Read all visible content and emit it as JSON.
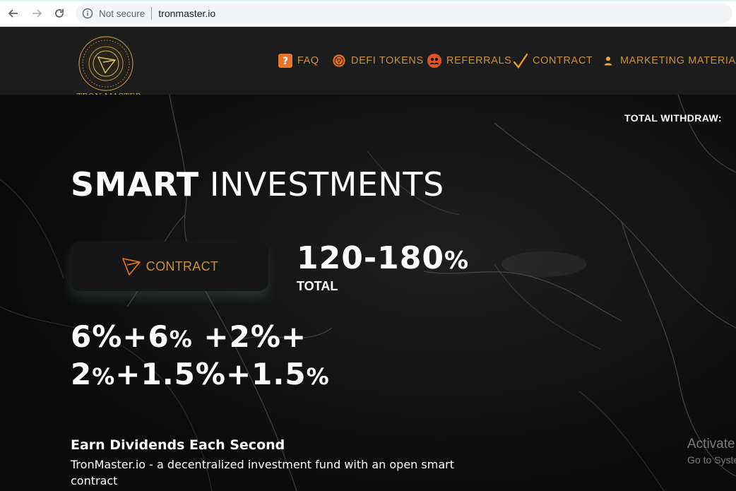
{
  "browser": {
    "security_label": "Not secure",
    "url": "tronmaster.io"
  },
  "header": {
    "logo_text": "• TRON MASTER •",
    "nav": [
      {
        "label": "FAQ",
        "icon": "question-icon"
      },
      {
        "label": "DEFI TOKENS",
        "icon": "defi-token-icon"
      },
      {
        "label": "REFERRALS",
        "icon": "referrals-icon"
      },
      {
        "label": "CONTRACT",
        "icon": "checkmark-icon"
      },
      {
        "label": "MARKETING MATERIAL",
        "icon": "user-icon"
      }
    ]
  },
  "hero": {
    "total_withdraw_label": "TOTAL WITHDRAW:",
    "headline_bold": "SMART",
    "headline_rest": " INVESTMENTS",
    "contract_button_label": "CONTRACT",
    "rate_value": "120-180",
    "rate_unit": "%",
    "rate_label": "TOTAL",
    "percent_line1": [
      "6%+6",
      "%",
      " +2%+"
    ],
    "percent_line2": [
      "2",
      "%",
      "+1.5%+1.5",
      "%"
    ],
    "earn_title": "Earn Dividends Each Second",
    "earn_description": "TronMaster.io - a decentralized investment fund with an open smart contract"
  },
  "watermark": {
    "line1": "Activate",
    "line2": "Go to Syste"
  },
  "colors": {
    "accent_gold": "#c9923e",
    "header_bg": "#1c1c1c",
    "hero_bg": "#0b0b0b"
  }
}
